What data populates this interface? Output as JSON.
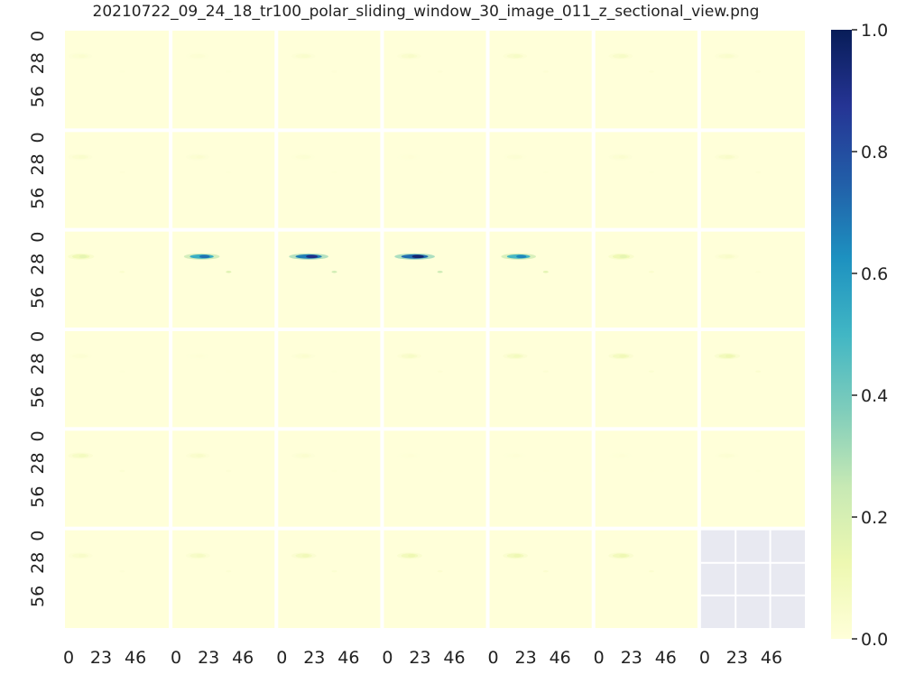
{
  "chart_data": {
    "type": "heatmap",
    "title": "20210722_09_24_18_tr100_polar_sliding_window_30_image_011_z_sectional_view.png",
    "grid": {
      "rows": 6,
      "cols": 7,
      "empty_panels": [
        [
          5,
          6
        ]
      ]
    },
    "x_tick_labels": [
      "0",
      "23",
      "46"
    ],
    "y_tick_labels": [
      "0",
      "28",
      "56"
    ],
    "colorbar": {
      "min": 0.0,
      "max": 1.0,
      "tick_labels": [
        "0.0",
        "0.2",
        "0.4",
        "0.6",
        "0.8",
        "1.0"
      ],
      "colormap": "YlGnBu"
    },
    "panel_peaks": [
      [
        0.03,
        0.02,
        0.04,
        0.05,
        0.06,
        0.06,
        0.04
      ],
      [
        0.04,
        0.03,
        0.02,
        0.01,
        0.02,
        0.03,
        0.05
      ],
      [
        0.15,
        0.7,
        0.9,
        0.95,
        0.65,
        0.15,
        0.05
      ],
      [
        0.02,
        0.01,
        0.03,
        0.06,
        0.08,
        0.1,
        0.12
      ],
      [
        0.08,
        0.05,
        0.03,
        0.01,
        0.01,
        0.01,
        0.02
      ],
      [
        0.05,
        0.07,
        0.1,
        0.12,
        0.12,
        0.12,
        null
      ]
    ],
    "empty_color": "#e8e9f1",
    "background_color": "#ffffd9"
  }
}
